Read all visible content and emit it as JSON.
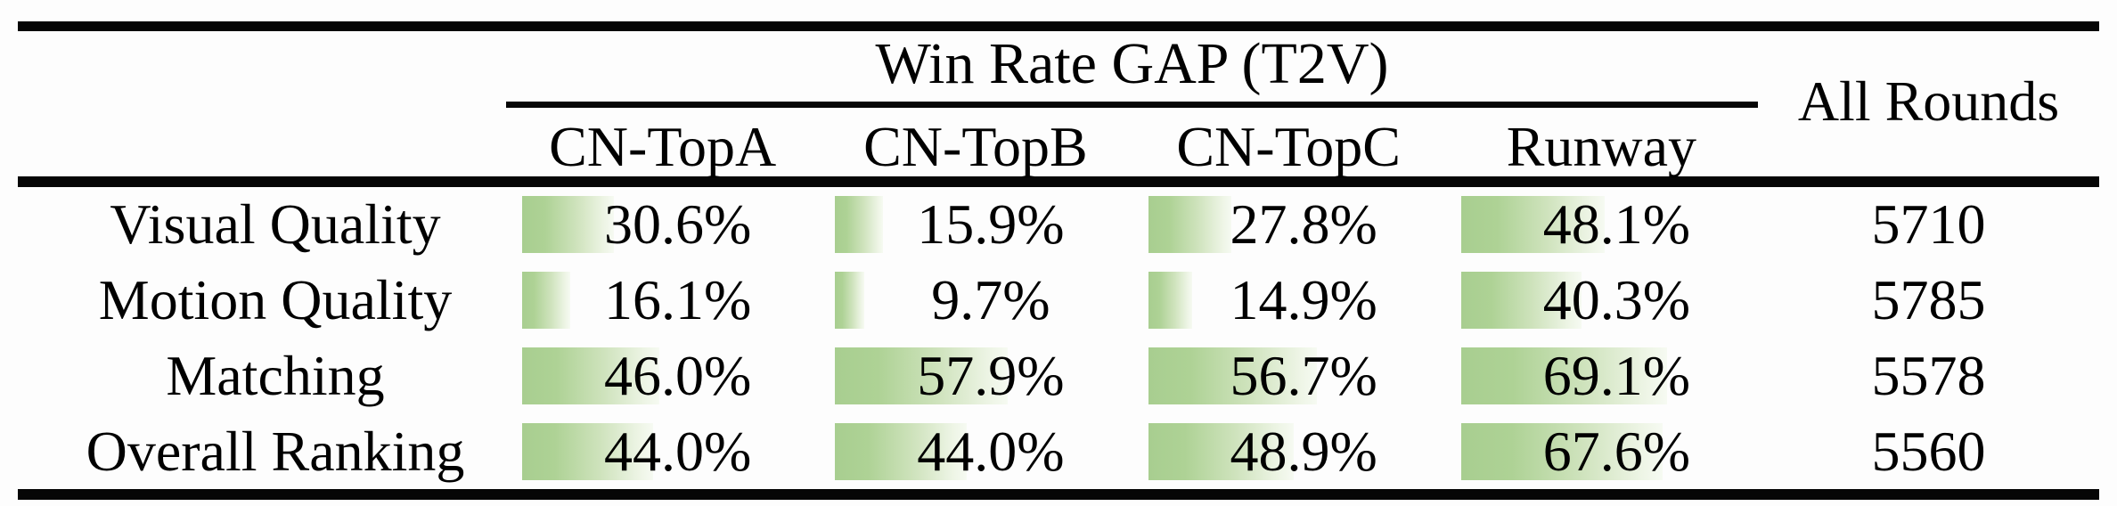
{
  "table": {
    "group_header": "Win Rate GAP (T2V)",
    "all_rounds_header": "All Rounds",
    "columns": [
      "CN-TopA",
      "CN-TopB",
      "CN-TopC",
      "Runway"
    ],
    "rows": [
      {
        "label": "Visual Quality",
        "cells": [
          {
            "text": "30.6%",
            "value": 30.6
          },
          {
            "text": "15.9%",
            "value": 15.9
          },
          {
            "text": "27.8%",
            "value": 27.8
          },
          {
            "text": "48.1%",
            "value": 48.1
          }
        ],
        "all_rounds": "5710"
      },
      {
        "label": "Motion Quality",
        "cells": [
          {
            "text": "16.1%",
            "value": 16.1
          },
          {
            "text": "9.7%",
            "value": 9.7
          },
          {
            "text": "14.9%",
            "value": 14.9
          },
          {
            "text": "40.3%",
            "value": 40.3
          }
        ],
        "all_rounds": "5785"
      },
      {
        "label": "Matching",
        "cells": [
          {
            "text": "46.0%",
            "value": 46.0
          },
          {
            "text": "57.9%",
            "value": 57.9
          },
          {
            "text": "56.7%",
            "value": 56.7
          },
          {
            "text": "69.1%",
            "value": 69.1
          }
        ],
        "all_rounds": "5578"
      },
      {
        "label": "Overall Ranking",
        "cells": [
          {
            "text": "44.0%",
            "value": 44.0
          },
          {
            "text": "44.0%",
            "value": 44.0
          },
          {
            "text": "48.9%",
            "value": 48.9
          },
          {
            "text": "67.6%",
            "value": 67.6
          }
        ],
        "all_rounds": "5560"
      }
    ],
    "bar": {
      "fill_start": "#a8ce90",
      "fill_end": "#f6faf2",
      "scale_max": 100
    },
    "rule_color": "#060606"
  },
  "chart_data": {
    "type": "table",
    "title": "Win Rate GAP (T2V)",
    "columns": [
      "CN-TopA",
      "CN-TopB",
      "CN-TopC",
      "Runway",
      "All Rounds"
    ],
    "row_labels": [
      "Visual Quality",
      "Motion Quality",
      "Matching",
      "Overall Ranking"
    ],
    "series": [
      {
        "name": "CN-TopA",
        "values": [
          30.6,
          16.1,
          46.0,
          44.0
        ]
      },
      {
        "name": "CN-TopB",
        "values": [
          15.9,
          9.7,
          57.9,
          44.0
        ]
      },
      {
        "name": "CN-TopC",
        "values": [
          27.8,
          14.9,
          56.7,
          48.9
        ]
      },
      {
        "name": "Runway",
        "values": [
          48.1,
          40.3,
          69.1,
          67.6
        ]
      }
    ],
    "all_rounds": [
      5710,
      5785,
      5578,
      5560
    ],
    "unit": "percent",
    "bar_scale": [
      0,
      100
    ],
    "bar_style": "green gradient data bars behind values"
  }
}
